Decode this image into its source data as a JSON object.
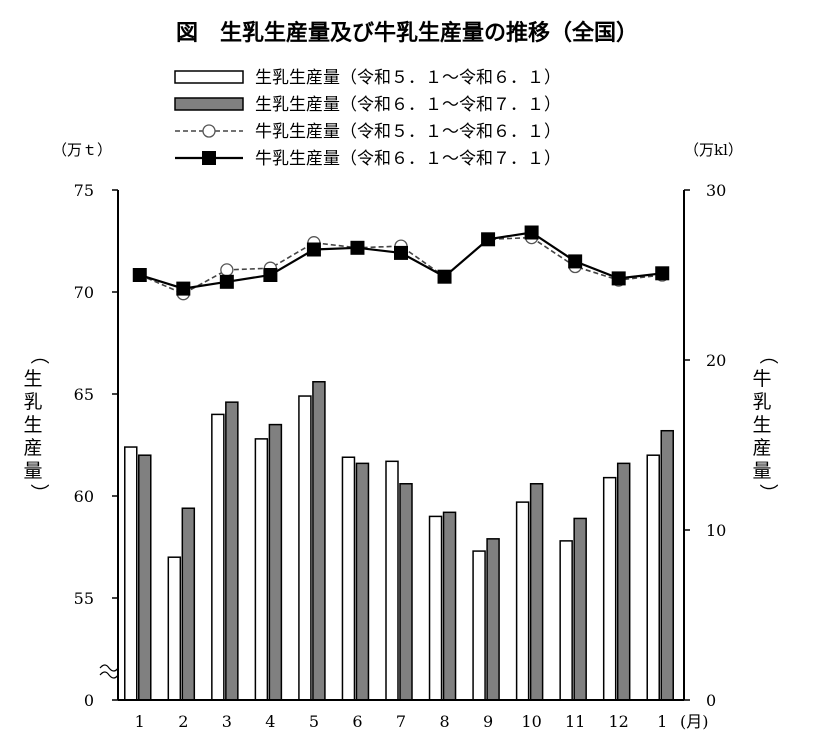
{
  "chart_data": {
    "type": "bar+line",
    "title": "図　生乳生産量及び牛乳生産量の推移（全国）",
    "categories": [
      "1",
      "2",
      "3",
      "4",
      "5",
      "6",
      "7",
      "8",
      "9",
      "10",
      "11",
      "12",
      "1"
    ],
    "x_unit": "(月)",
    "left_axis": {
      "unit": "（万ｔ）",
      "label": "（生乳生産量）",
      "ticks": [
        "0",
        "55",
        "60",
        "65",
        "70",
        "75"
      ],
      "broken": true
    },
    "right_axis": {
      "unit": "（万kl）",
      "label": "（牛乳生産量）",
      "ticks": [
        "0",
        "10",
        "20",
        "30"
      ],
      "ylim": [
        0,
        30
      ]
    },
    "series": [
      {
        "name": "生乳生産量（令和５．１～令和６．１）",
        "type": "bar",
        "axis": "left",
        "style": "white",
        "values": [
          62.4,
          57.0,
          64.0,
          62.8,
          64.9,
          61.9,
          61.7,
          59.0,
          57.3,
          59.7,
          57.8,
          60.9,
          62.0
        ]
      },
      {
        "name": "生乳生産量（令和６．１～令和７．１）",
        "type": "bar",
        "axis": "left",
        "style": "gray",
        "values": [
          62.0,
          59.4,
          64.6,
          63.5,
          65.6,
          61.6,
          60.6,
          59.2,
          57.9,
          60.6,
          58.9,
          61.6,
          63.2
        ]
      },
      {
        "name": "牛乳生産量（令和５．１～令和６．１）",
        "type": "line",
        "axis": "right",
        "style": "dashed-circle",
        "values": [
          25.0,
          23.9,
          25.3,
          25.4,
          26.9,
          26.6,
          26.7,
          24.9,
          27.1,
          27.2,
          25.5,
          24.7,
          25.0
        ]
      },
      {
        "name": "牛乳生産量（令和６．１～令和７．１）",
        "type": "line",
        "axis": "right",
        "style": "solid-square",
        "values": [
          25.0,
          24.2,
          24.6,
          25.0,
          26.5,
          26.6,
          26.3,
          24.9,
          27.1,
          27.5,
          25.8,
          24.8,
          25.1
        ]
      }
    ]
  }
}
